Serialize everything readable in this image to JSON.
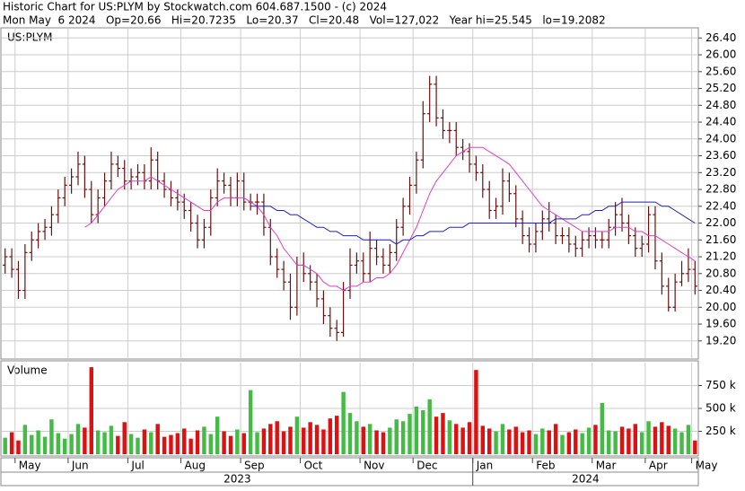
{
  "chart_data": {
    "type": "ohlc",
    "header": [
      "Historic Chart for US:PLYM by Stockwatch.com 604.687.1500 - (c) 2024",
      "Mon May  6 2024   Op=20.66   Hi=20.7235   Lo=20.37   Cl=20.48   Vol=127,022   Year hi=25.545   lo=19.2082"
    ],
    "symbol_label": "US:PLYM",
    "categories": [
      null,
      null,
      "May",
      null,
      null,
      null,
      null,
      null,
      null,
      null,
      "Jun",
      null,
      null,
      null,
      null,
      null,
      null,
      null,
      null,
      "Jul",
      null,
      null,
      null,
      null,
      null,
      null,
      null,
      "Aug",
      null,
      null,
      null,
      null,
      null,
      null,
      null,
      null,
      "Sep",
      null,
      null,
      null,
      null,
      null,
      null,
      null,
      null,
      "Oct",
      null,
      null,
      null,
      null,
      null,
      null,
      null,
      null,
      "Nov",
      null,
      null,
      null,
      null,
      null,
      null,
      null,
      "Dec",
      null,
      null,
      null,
      null,
      null,
      null,
      null,
      null,
      "Jan",
      null,
      null,
      null,
      null,
      null,
      null,
      null,
      null,
      "Feb",
      null,
      null,
      null,
      null,
      null,
      null,
      null,
      null,
      "Mar",
      null,
      null,
      null,
      null,
      null,
      null,
      null,
      "Apr",
      null,
      null,
      null,
      null,
      null,
      null,
      "May"
    ],
    "years": [
      "2023",
      "2024"
    ],
    "year_split": "Jan",
    "open": [
      21.0,
      21.2,
      20.9,
      20.4,
      21.3,
      21.6,
      21.8,
      21.9,
      22.2,
      22.6,
      22.9,
      23.1,
      23.4,
      22.8,
      22.2,
      22.6,
      23.0,
      23.4,
      23.3,
      23.0,
      23.1,
      23.2,
      23.0,
      23.5,
      23.0,
      22.8,
      22.6,
      22.5,
      22.3,
      22.0,
      21.6,
      21.9,
      22.6,
      23.0,
      22.9,
      22.6,
      23.0,
      22.5,
      22.5,
      22.5,
      21.9,
      21.2,
      20.9,
      20.6,
      20.0,
      21.0,
      20.8,
      20.6,
      20.2,
      19.8,
      19.5,
      19.4,
      20.4,
      21.0,
      21.1,
      20.8,
      21.4,
      21.2,
      21.0,
      21.3,
      21.9,
      22.4,
      22.9,
      23.5,
      24.6,
      25.3,
      24.5,
      24.2,
      24.2,
      23.8,
      23.7,
      23.4,
      23.2,
      22.8,
      22.3,
      22.4,
      23.0,
      22.7,
      22.1,
      21.7,
      21.5,
      21.8,
      22.1,
      22.0,
      21.7,
      21.7,
      21.5,
      21.4,
      21.6,
      21.7,
      21.6,
      21.6,
      21.9,
      22.2,
      22.0,
      21.7,
      21.4,
      21.5,
      22.2,
      21.1,
      20.5,
      20.0,
      20.6,
      20.8,
      20.9
    ],
    "high": [
      21.4,
      21.4,
      21.1,
      21.5,
      21.8,
      22.0,
      22.1,
      22.4,
      22.8,
      23.1,
      23.3,
      23.7,
      23.6,
      23.0,
      22.8,
      23.2,
      23.7,
      23.6,
      23.5,
      23.3,
      23.4,
      23.4,
      23.8,
      23.7,
      23.2,
      23.0,
      22.8,
      22.7,
      22.5,
      22.2,
      22.1,
      22.8,
      23.3,
      23.2,
      23.1,
      23.2,
      23.2,
      22.7,
      22.7,
      22.7,
      22.1,
      21.4,
      21.1,
      20.8,
      21.2,
      21.3,
      21.0,
      20.8,
      20.4,
      20.0,
      19.7,
      20.6,
      21.4,
      21.3,
      21.3,
      21.8,
      21.6,
      21.4,
      21.5,
      22.1,
      22.6,
      23.1,
      23.7,
      24.9,
      25.5,
      25.5,
      24.7,
      24.4,
      24.4,
      24.0,
      23.9,
      23.6,
      23.4,
      23.0,
      22.6,
      23.3,
      23.2,
      22.9,
      22.3,
      21.9,
      22.0,
      22.3,
      22.5,
      22.2,
      21.9,
      21.9,
      21.7,
      21.8,
      21.9,
      21.9,
      21.8,
      22.1,
      22.5,
      22.6,
      22.2,
      21.9,
      21.7,
      22.4,
      22.4,
      21.3,
      20.7,
      20.8,
      21.1,
      21.4,
      21.1
    ],
    "low": [
      20.8,
      20.7,
      20.2,
      20.2,
      21.1,
      21.4,
      21.6,
      21.7,
      22.0,
      22.4,
      22.7,
      22.9,
      22.6,
      22.0,
      22.0,
      22.4,
      22.8,
      23.1,
      22.8,
      22.8,
      22.9,
      22.8,
      22.8,
      22.8,
      22.6,
      22.4,
      22.3,
      22.1,
      21.8,
      21.4,
      21.4,
      21.7,
      22.4,
      22.7,
      22.4,
      22.4,
      22.3,
      22.3,
      22.2,
      21.7,
      21.0,
      20.7,
      20.4,
      19.7,
      19.8,
      20.6,
      20.4,
      20.0,
      19.6,
      19.3,
      19.2,
      19.3,
      20.2,
      20.8,
      20.6,
      20.6,
      21.0,
      20.8,
      20.8,
      21.1,
      21.7,
      22.2,
      22.7,
      23.3,
      24.4,
      24.3,
      24.0,
      23.9,
      23.6,
      23.5,
      23.2,
      23.0,
      22.6,
      22.1,
      22.1,
      22.2,
      22.5,
      21.9,
      21.5,
      21.3,
      21.3,
      21.6,
      21.8,
      21.5,
      21.5,
      21.3,
      21.2,
      21.2,
      21.4,
      21.4,
      21.4,
      21.4,
      21.7,
      21.8,
      21.5,
      21.2,
      21.2,
      21.3,
      20.9,
      20.3,
      19.9,
      19.9,
      20.5,
      20.6,
      20.3
    ],
    "close": [
      21.2,
      20.9,
      20.4,
      21.3,
      21.6,
      21.8,
      21.9,
      22.2,
      22.6,
      22.9,
      23.1,
      23.4,
      22.8,
      22.2,
      22.6,
      23.0,
      23.4,
      23.3,
      23.0,
      23.1,
      23.2,
      23.0,
      23.5,
      23.0,
      22.8,
      22.6,
      22.5,
      22.3,
      22.0,
      21.6,
      21.9,
      22.6,
      23.0,
      22.9,
      22.6,
      23.0,
      22.5,
      22.5,
      22.5,
      21.9,
      21.2,
      20.9,
      20.6,
      20.0,
      21.0,
      20.8,
      20.6,
      20.2,
      19.8,
      19.5,
      19.4,
      20.4,
      21.0,
      21.1,
      20.8,
      21.4,
      21.2,
      21.0,
      21.3,
      21.9,
      22.4,
      22.9,
      23.5,
      24.6,
      25.3,
      24.5,
      24.2,
      24.2,
      23.8,
      23.7,
      23.4,
      23.2,
      22.8,
      22.3,
      22.4,
      23.0,
      22.7,
      22.1,
      21.7,
      21.5,
      21.8,
      22.1,
      22.0,
      21.7,
      21.7,
      21.5,
      21.4,
      21.6,
      21.7,
      21.6,
      21.6,
      21.9,
      22.2,
      22.0,
      21.7,
      21.4,
      21.5,
      22.2,
      21.1,
      20.5,
      20.0,
      20.6,
      20.8,
      20.9,
      20.5
    ],
    "color": "#6b1010",
    "ylim": [
      18.79,
      26.62
    ],
    "yticks": [
      {
        "value": 19.2,
        "label": "19.20"
      },
      {
        "value": 19.6,
        "label": "19.60"
      },
      {
        "value": 20.0,
        "label": "20.00"
      },
      {
        "value": 20.4,
        "label": "20.40"
      },
      {
        "value": 20.8,
        "label": "20.80"
      },
      {
        "value": 21.2,
        "label": "21.20"
      },
      {
        "value": 21.6,
        "label": "21.60"
      },
      {
        "value": 22.0,
        "label": "22.00"
      },
      {
        "value": 22.4,
        "label": "22.40"
      },
      {
        "value": 22.8,
        "label": "22.80"
      },
      {
        "value": 23.2,
        "label": "23.20"
      },
      {
        "value": 23.6,
        "label": "23.60"
      },
      {
        "value": 24.0,
        "label": "24.00"
      },
      {
        "value": 24.4,
        "label": "24.40"
      },
      {
        "value": 24.8,
        "label": "24.80"
      },
      {
        "value": 25.2,
        "label": "25.20"
      },
      {
        "value": 25.6,
        "label": "25.60"
      },
      {
        "value": 26.0,
        "label": "26.00"
      },
      {
        "value": 26.4,
        "label": "26.40"
      }
    ],
    "grid": true,
    "moving_averages": [
      {
        "color": "#e040c0",
        "values": [
          null,
          null,
          null,
          null,
          null,
          null,
          null,
          null,
          null,
          null,
          null,
          null,
          21.9,
          22.0,
          22.2,
          22.4,
          22.6,
          22.8,
          22.9,
          23.0,
          23.0,
          23.0,
          23.1,
          23.0,
          22.9,
          22.8,
          22.7,
          22.6,
          22.5,
          22.4,
          22.3,
          22.3,
          22.5,
          22.6,
          22.6,
          22.6,
          22.6,
          22.5,
          22.4,
          22.2,
          21.9,
          21.7,
          21.4,
          21.2,
          21.0,
          21.0,
          20.9,
          20.8,
          20.6,
          20.5,
          20.5,
          20.4,
          20.5,
          20.5,
          20.6,
          20.6,
          20.7,
          20.7,
          20.8,
          21.0,
          21.3,
          21.6,
          21.9,
          22.3,
          22.7,
          23.0,
          23.2,
          23.4,
          23.6,
          23.7,
          23.8,
          23.8,
          23.8,
          23.7,
          23.6,
          23.5,
          23.4,
          23.2,
          23.0,
          22.8,
          22.6,
          22.4,
          22.3,
          22.2,
          22.1,
          22.0,
          21.9,
          21.8,
          21.8,
          21.8,
          21.8,
          21.8,
          21.9,
          21.9,
          21.9,
          21.8,
          21.8,
          21.7,
          21.7,
          21.6,
          21.5,
          21.4,
          21.3,
          21.2,
          21.1
        ]
      },
      {
        "color": "#2020c0",
        "values": [
          null,
          null,
          null,
          null,
          null,
          null,
          null,
          null,
          null,
          null,
          null,
          null,
          null,
          null,
          null,
          null,
          null,
          null,
          null,
          null,
          null,
          null,
          null,
          null,
          null,
          null,
          null,
          null,
          null,
          null,
          null,
          null,
          null,
          null,
          null,
          null,
          null,
          22.4,
          22.4,
          22.4,
          22.4,
          22.3,
          22.3,
          22.2,
          22.2,
          22.1,
          22.0,
          21.9,
          21.9,
          21.8,
          21.8,
          21.7,
          21.7,
          21.7,
          21.6,
          21.6,
          21.6,
          21.6,
          21.6,
          21.5,
          21.6,
          21.6,
          21.7,
          21.7,
          21.8,
          21.8,
          21.8,
          21.9,
          21.9,
          21.9,
          22.0,
          22.0,
          22.0,
          22.0,
          22.0,
          22.0,
          22.0,
          22.0,
          22.0,
          22.0,
          22.0,
          22.0,
          22.0,
          22.1,
          22.1,
          22.1,
          22.1,
          22.2,
          22.2,
          22.3,
          22.3,
          22.4,
          22.4,
          22.5,
          22.5,
          22.5,
          22.5,
          22.5,
          22.5,
          22.4,
          22.4,
          22.3,
          22.2,
          22.1,
          22.0
        ]
      }
    ],
    "volume": {
      "label": "Volume",
      "up_color": "#44bb44",
      "down_color": "#dd1111",
      "values": [
        180000,
        240000,
        150000,
        320000,
        210000,
        260000,
        190000,
        380000,
        230000,
        170000,
        220000,
        330000,
        290000,
        950000,
        260000,
        240000,
        310000,
        200000,
        350000,
        220000,
        180000,
        270000,
        240000,
        330000,
        190000,
        210000,
        230000,
        280000,
        170000,
        260000,
        300000,
        220000,
        410000,
        250000,
        200000,
        270000,
        230000,
        700000,
        240000,
        280000,
        330000,
        360000,
        250000,
        300000,
        410000,
        290000,
        350000,
        320000,
        270000,
        390000,
        420000,
        680000,
        450000,
        360000,
        300000,
        330000,
        260000,
        240000,
        290000,
        380000,
        360000,
        440000,
        520000,
        480000,
        600000,
        410000,
        450000,
        370000,
        330000,
        290000,
        350000,
        920000,
        310000,
        280000,
        250000,
        330000,
        270000,
        300000,
        240000,
        260000,
        220000,
        280000,
        260000,
        330000,
        210000,
        240000,
        270000,
        230000,
        290000,
        320000,
        560000,
        260000,
        250000,
        300000,
        280000,
        330000,
        240000,
        360000,
        300000,
        350000,
        310000,
        280000,
        240000,
        320000,
        150000
      ],
      "ylim": [
        0,
        1000000
      ],
      "yticks": [
        {
          "value": 250000,
          "label": "250 k"
        },
        {
          "value": 500000,
          "label": "500 k"
        },
        {
          "value": 750000,
          "label": "750 k"
        }
      ]
    }
  }
}
